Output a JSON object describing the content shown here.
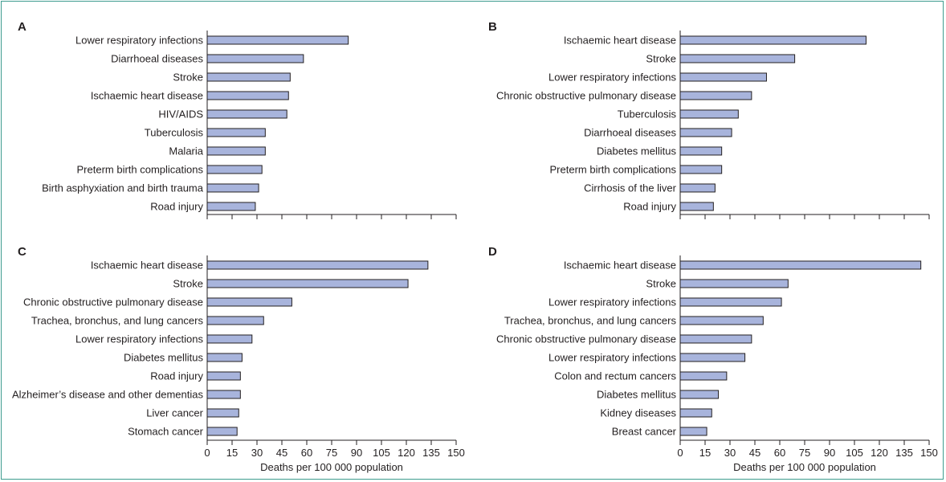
{
  "chart_data": [
    {
      "type": "bar",
      "panel": "A",
      "orientation": "horizontal",
      "categories": [
        "Lower respiratory infections",
        "Diarrhoeal diseases",
        "Stroke",
        "Ischaemic heart disease",
        "HIV/AIDS",
        "Tuberculosis",
        "Malaria",
        "Preterm birth complications",
        "Birth asphyxiation and birth trauma",
        "Road injury"
      ],
      "values": [
        85,
        58,
        50,
        49,
        48,
        35,
        35,
        33,
        31,
        29
      ],
      "xlim": [
        0,
        150
      ],
      "xticks": [
        0,
        15,
        30,
        45,
        60,
        75,
        90,
        105,
        120,
        135,
        150
      ],
      "show_tick_labels": false,
      "xlabel": ""
    },
    {
      "type": "bar",
      "panel": "B",
      "orientation": "horizontal",
      "categories": [
        "Ischaemic heart disease",
        "Stroke",
        "Lower respiratory infections",
        "Chronic obstructive pulmonary disease",
        "Tuberculosis",
        "Diarrhoeal diseases",
        "Diabetes mellitus",
        "Preterm birth complications",
        "Cirrhosis of the liver",
        "Road injury"
      ],
      "values": [
        112,
        69,
        52,
        43,
        35,
        31,
        25,
        25,
        21,
        20
      ],
      "xlim": [
        0,
        150
      ],
      "xticks": [
        0,
        15,
        30,
        45,
        60,
        75,
        90,
        105,
        120,
        135,
        150
      ],
      "show_tick_labels": false,
      "xlabel": ""
    },
    {
      "type": "bar",
      "panel": "C",
      "orientation": "horizontal",
      "categories": [
        "Ischaemic heart disease",
        "Stroke",
        "Chronic obstructive pulmonary disease",
        "Trachea, bronchus, and lung cancers",
        "Lower respiratory infections",
        "Diabetes mellitus",
        "Road injury",
        "Alzheimer’s disease and other dementias",
        "Liver cancer",
        "Stomach cancer"
      ],
      "values": [
        133,
        121,
        51,
        34,
        27,
        21,
        20,
        20,
        19,
        18
      ],
      "xlim": [
        0,
        150
      ],
      "xticks": [
        0,
        15,
        30,
        45,
        60,
        75,
        90,
        105,
        120,
        135,
        150
      ],
      "show_tick_labels": true,
      "xlabel": "Deaths per 100 000 population"
    },
    {
      "type": "bar",
      "panel": "D",
      "orientation": "horizontal",
      "categories": [
        "Ischaemic heart disease",
        "Stroke",
        "Lower respiratory infections",
        "Trachea, bronchus, and lung cancers",
        "Chronic obstructive pulmonary disease",
        "Lower respiratory infections",
        "Colon and rectum cancers",
        "Diabetes mellitus",
        "Kidney diseases",
        "Breast cancer"
      ],
      "values": [
        145,
        65,
        61,
        50,
        43,
        39,
        28,
        23,
        19,
        16
      ],
      "xlim": [
        0,
        150
      ],
      "xticks": [
        0,
        15,
        30,
        45,
        60,
        75,
        90,
        105,
        120,
        135,
        150
      ],
      "show_tick_labels": true,
      "xlabel": "Deaths per 100 000 population"
    }
  ],
  "colors": {
    "bar_fill": "#a8b4dc",
    "bar_stroke": "#231f20",
    "frame": "#3e9c8f",
    "text": "#231f20"
  }
}
